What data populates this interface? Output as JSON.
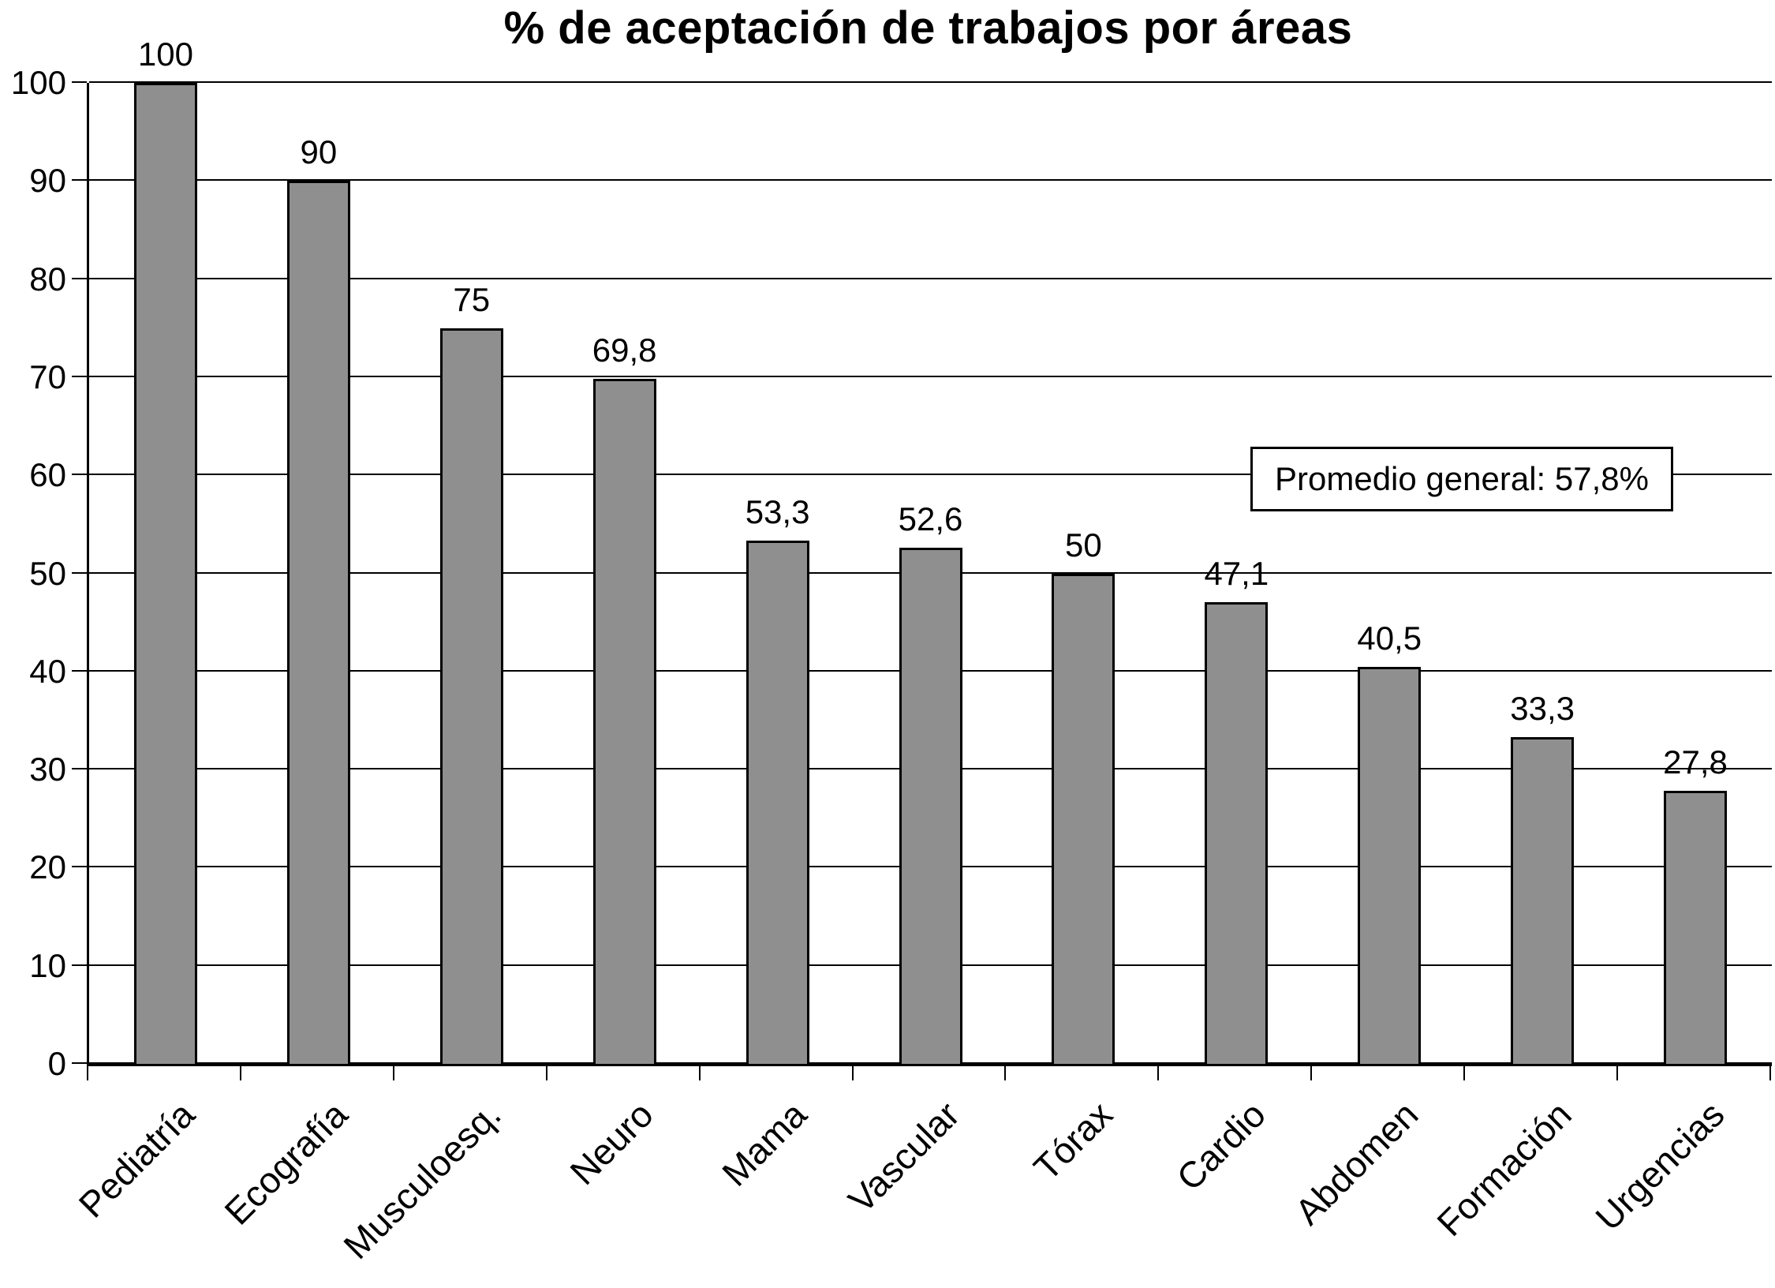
{
  "chart_data": {
    "type": "bar",
    "title": "% de aceptación de trabajos por áreas",
    "categories": [
      "Pediatría",
      "Ecografía",
      "Musculoesq.",
      "Neuro",
      "Mama",
      "Vascular",
      "Tórax",
      "Cardio",
      "Abdomen",
      "Formación",
      "Urgencias"
    ],
    "values": [
      100,
      90,
      75,
      69.8,
      53.3,
      52.6,
      50,
      47.1,
      40.5,
      33.3,
      27.8
    ],
    "value_labels": [
      "100",
      "90",
      "75",
      "69,8",
      "53,3",
      "52,6",
      "50",
      "47,1",
      "40,5",
      "33,3",
      "27,8"
    ],
    "yticks": [
      0,
      10,
      20,
      30,
      40,
      50,
      60,
      70,
      80,
      90,
      100
    ],
    "ylim": [
      0,
      100
    ],
    "xlabel": "",
    "ylabel": "",
    "grid": true,
    "legend": null,
    "annotation": "Promedio general: 57,8%",
    "bar_color": "#8f8f8f",
    "bar_border_color": "#000000",
    "axis_color": "#000000",
    "background_color": "#ffffff"
  }
}
